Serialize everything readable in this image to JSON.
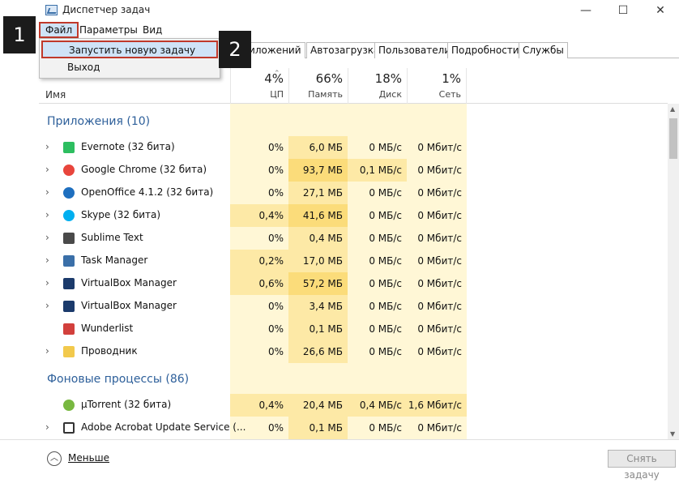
{
  "window": {
    "title": "Диспетчер задач",
    "controls": {
      "minimize": "—",
      "maximize": "☐",
      "close": "✕"
    }
  },
  "menu": {
    "file": "Файл",
    "options": "Параметры",
    "view": "Вид"
  },
  "dropdown": {
    "run_task": "Запустить новую задачу",
    "exit": "Выход"
  },
  "tabs": [
    "...риложений",
    "Автозагрузка",
    "Пользователи",
    "Подробности",
    "Службы"
  ],
  "header": {
    "name": "Имя",
    "cpu": {
      "pct": "4%",
      "label": "ЦП"
    },
    "memory": {
      "pct": "66%",
      "label": "Память"
    },
    "disk": {
      "pct": "18%",
      "label": "Диск"
    },
    "network": {
      "pct": "1%",
      "label": "Сеть"
    }
  },
  "groups": {
    "apps": "Приложения (10)",
    "background": "Фоновые процессы (86)"
  },
  "apps": [
    {
      "name": "Evernote (32 бита)",
      "cpu": "0%",
      "mem": "6,0 МБ",
      "disk": "0 МБ/с",
      "net": "0 Мбит/с",
      "icon": "evernote-icon",
      "color": "#2dbe60"
    },
    {
      "name": "Google Chrome (32 бита)",
      "cpu": "0%",
      "mem": "93,7 МБ",
      "disk": "0,1 МБ/с",
      "net": "0 Мбит/с",
      "icon": "chrome-icon",
      "color": "#e8453c"
    },
    {
      "name": "OpenOffice 4.1.2 (32 бита)",
      "cpu": "0%",
      "mem": "27,1 МБ",
      "disk": "0 МБ/с",
      "net": "0 Мбит/с",
      "icon": "openoffice-icon",
      "color": "#1e6fbf"
    },
    {
      "name": "Skype (32 бита)",
      "cpu": "0,4%",
      "mem": "41,6 МБ",
      "disk": "0 МБ/с",
      "net": "0 Мбит/с",
      "icon": "skype-icon",
      "color": "#00aff0"
    },
    {
      "name": "Sublime Text",
      "cpu": "0%",
      "mem": "0,4 МБ",
      "disk": "0 МБ/с",
      "net": "0 Мбит/с",
      "icon": "sublime-icon",
      "color": "#4a4a4a"
    },
    {
      "name": "Task Manager",
      "cpu": "0,2%",
      "mem": "17,0 МБ",
      "disk": "0 МБ/с",
      "net": "0 Мбит/с",
      "icon": "task-manager-icon",
      "color": "#3a6fa8"
    },
    {
      "name": "VirtualBox Manager",
      "cpu": "0,6%",
      "mem": "57,2 МБ",
      "disk": "0 МБ/с",
      "net": "0 Мбит/с",
      "icon": "virtualbox-icon",
      "color": "#1b3a6b"
    },
    {
      "name": "VirtualBox Manager",
      "cpu": "0%",
      "mem": "3,4 МБ",
      "disk": "0 МБ/с",
      "net": "0 Мбит/с",
      "icon": "virtualbox-icon",
      "color": "#1b3a6b"
    },
    {
      "name": "Wunderlist",
      "cpu": "0%",
      "mem": "0,1 МБ",
      "disk": "0 МБ/с",
      "net": "0 Мбит/с",
      "icon": "wunderlist-icon",
      "color": "#d2403c"
    },
    {
      "name": "Проводник",
      "cpu": "0%",
      "mem": "26,6 МБ",
      "disk": "0 МБ/с",
      "net": "0 Мбит/с",
      "icon": "explorer-icon",
      "color": "#f2c94c"
    }
  ],
  "background": [
    {
      "name": "µTorrent (32 бита)",
      "cpu": "0,4%",
      "mem": "20,4 МБ",
      "disk": "0,4 МБ/с",
      "net": "1,6 Мбит/с",
      "icon": "utorrent-icon",
      "color": "#78b840"
    },
    {
      "name": "Adobe Acrobat Update Service (...",
      "cpu": "0%",
      "mem": "0,1 МБ",
      "disk": "0 МБ/с",
      "net": "0 Мбит/с",
      "icon": "service-icon",
      "color": "#333333"
    }
  ],
  "footer": {
    "less": "Меньше",
    "end_task": "Снять задачу"
  },
  "badges": {
    "one": "1",
    "two": "2"
  },
  "colors": {
    "accent_red": "#c0392b",
    "group_blue": "#2d5f9a",
    "heat": "#fde9a6"
  }
}
